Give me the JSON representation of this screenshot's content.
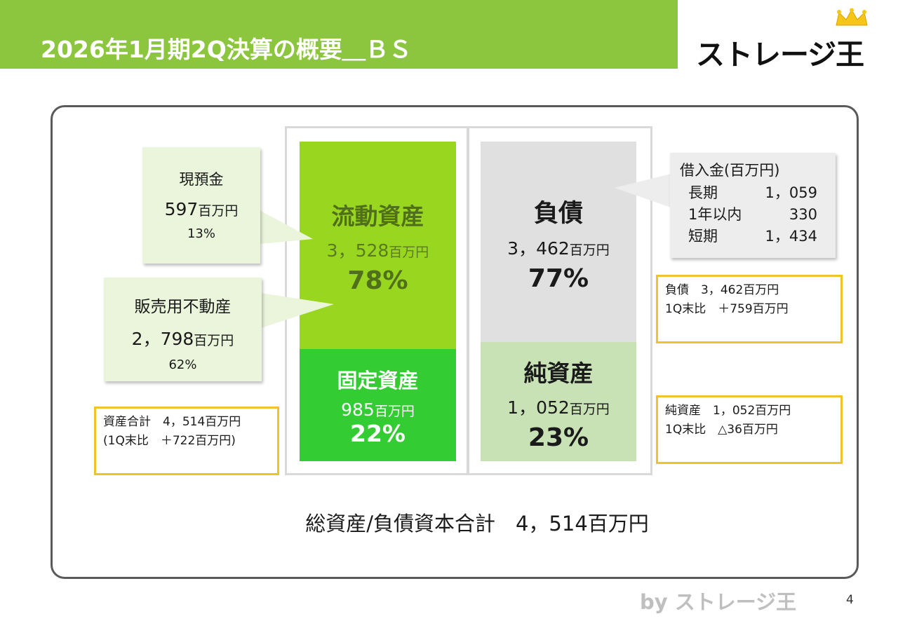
{
  "header": {
    "title": "2026年1月期2Q決算の概要＿ＢＳ",
    "logo_text": "ストレージ王"
  },
  "assets": {
    "current": {
      "name": "流動資産",
      "value": "3，528",
      "unit": "百万円",
      "pct": "78%"
    },
    "fixed": {
      "name": "固定資産",
      "value": "985",
      "unit": "百万円",
      "pct": "22%"
    }
  },
  "liabilities_equity": {
    "liabilities": {
      "name": "負債",
      "value": "3，462",
      "unit": "百万円",
      "pct": "77%"
    },
    "net_assets": {
      "name": "純資産",
      "value": "1，052",
      "unit": "百万円",
      "pct": "23%"
    }
  },
  "callouts": {
    "cash": {
      "label": "現預金",
      "value": "597",
      "unit": "百万円",
      "pct": "13%"
    },
    "real_estate": {
      "label": "販売用不動産",
      "value": "2，798",
      "unit": "百万円",
      "pct": "62%"
    },
    "borrowings": {
      "title": "借入金(百万円)",
      "rows": [
        {
          "label": "長期",
          "value": "1，059"
        },
        {
          "label": "1年以内",
          "value": "330"
        },
        {
          "label": "短期",
          "value": "1，434"
        }
      ]
    }
  },
  "boxes": {
    "total_assets": {
      "line1": "資産合計　4，514百万円",
      "line2": "(1Q末比　＋722百万円)"
    },
    "liabilities": {
      "line1": "負債　3，462百万円",
      "line2": "1Q末比　＋759百万円"
    },
    "net_assets": {
      "line1": "純資産　1，052百万円",
      "line2": "1Q末比　△36百万円"
    }
  },
  "total": "総資産/負債資本合計　4，514百万円",
  "footer": {
    "by": "by ストレージ王",
    "page": "4"
  },
  "colors": {
    "header_green": "#8cc63f",
    "current_assets": "#99d61f",
    "fixed_assets": "#33cc33",
    "liabilities": "#e0e0e0",
    "net_assets": "#c8e2b6",
    "callout_green": "#ebf5dc",
    "callout_gray": "#ededed",
    "box_border": "#f2c12e"
  }
}
